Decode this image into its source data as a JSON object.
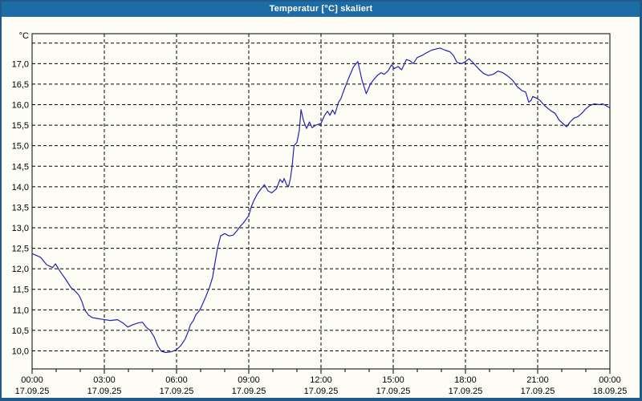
{
  "window": {
    "title": "Temperatur [°C] skaliert"
  },
  "chart_data": {
    "type": "line",
    "title": "Temperatur [°C] skaliert",
    "unit_label": "°C",
    "xlabel": "",
    "ylabel": "Temperatur [°C]",
    "xlim_hours": [
      0,
      24
    ],
    "ylim": [
      9.56,
      17.73
    ],
    "grid": "dashed",
    "legend": "none",
    "colors": {
      "titlebar": "#1d6ca5",
      "window_border": "#1e5a8c",
      "background": "#fdfdf6",
      "line": "#2424b2",
      "grid": "#000000"
    },
    "y_ticks": [
      {
        "value": 17.5,
        "label": ""
      },
      {
        "value": 17.0,
        "label": "17,0"
      },
      {
        "value": 16.5,
        "label": "16,5"
      },
      {
        "value": 16.0,
        "label": "16,0"
      },
      {
        "value": 15.5,
        "label": "15,5"
      },
      {
        "value": 15.0,
        "label": "15,0"
      },
      {
        "value": 14.5,
        "label": "14,5"
      },
      {
        "value": 14.0,
        "label": "14,0"
      },
      {
        "value": 13.5,
        "label": "13,5"
      },
      {
        "value": 13.0,
        "label": "13,0"
      },
      {
        "value": 12.5,
        "label": "12,5"
      },
      {
        "value": 12.0,
        "label": "12,0"
      },
      {
        "value": 11.5,
        "label": "11,5"
      },
      {
        "value": 11.0,
        "label": "11,0"
      },
      {
        "value": 10.5,
        "label": "10,5"
      },
      {
        "value": 10.0,
        "label": "10,0"
      }
    ],
    "x_ticks": [
      {
        "hour": 0,
        "time": "00:00",
        "date": "17.09.25"
      },
      {
        "hour": 3,
        "time": "03:00",
        "date": "17.09.25"
      },
      {
        "hour": 6,
        "time": "06:00",
        "date": "17.09.25"
      },
      {
        "hour": 9,
        "time": "09:00",
        "date": "17.09.25"
      },
      {
        "hour": 12,
        "time": "12:00",
        "date": "17.09.25"
      },
      {
        "hour": 15,
        "time": "15:00",
        "date": "17.09.25"
      },
      {
        "hour": 18,
        "time": "18:00",
        "date": "17.09.25"
      },
      {
        "hour": 21,
        "time": "21:00",
        "date": "17.09.25"
      },
      {
        "hour": 24,
        "time": "00:00",
        "date": "18.09.25"
      }
    ],
    "minor_x_tick_every_hours": 1,
    "series": [
      {
        "name": "Temperatur",
        "color": "#2424b2",
        "points_hour_degC": [
          [
            0,
            12.37
          ],
          [
            0.35,
            12.28
          ],
          [
            0.6,
            12.1
          ],
          [
            0.85,
            12.03
          ],
          [
            0.97,
            12.12
          ],
          [
            1.17,
            11.93
          ],
          [
            1.4,
            11.74
          ],
          [
            1.62,
            11.54
          ],
          [
            1.8,
            11.45
          ],
          [
            1.95,
            11.35
          ],
          [
            2.07,
            11.2
          ],
          [
            2.18,
            11.0
          ],
          [
            2.35,
            10.87
          ],
          [
            2.5,
            10.81
          ],
          [
            2.8,
            10.78
          ],
          [
            3.25,
            10.74
          ],
          [
            3.55,
            10.76
          ],
          [
            3.8,
            10.67
          ],
          [
            3.97,
            10.58
          ],
          [
            4.15,
            10.63
          ],
          [
            4.4,
            10.68
          ],
          [
            4.58,
            10.7
          ],
          [
            4.75,
            10.57
          ],
          [
            4.9,
            10.5
          ],
          [
            5.07,
            10.34
          ],
          [
            5.22,
            10.12
          ],
          [
            5.37,
            9.99
          ],
          [
            5.55,
            9.96
          ],
          [
            5.8,
            9.98
          ],
          [
            6.0,
            10.03
          ],
          [
            6.18,
            10.13
          ],
          [
            6.35,
            10.28
          ],
          [
            6.47,
            10.45
          ],
          [
            6.58,
            10.64
          ],
          [
            6.7,
            10.74
          ],
          [
            6.8,
            10.88
          ],
          [
            6.92,
            10.96
          ],
          [
            7.02,
            11.06
          ],
          [
            7.2,
            11.3
          ],
          [
            7.37,
            11.55
          ],
          [
            7.5,
            11.8
          ],
          [
            7.57,
            12.06
          ],
          [
            7.7,
            12.5
          ],
          [
            7.83,
            12.8
          ],
          [
            8.0,
            12.86
          ],
          [
            8.18,
            12.8
          ],
          [
            8.35,
            12.82
          ],
          [
            8.5,
            12.92
          ],
          [
            8.62,
            13.02
          ],
          [
            8.78,
            13.12
          ],
          [
            9.0,
            13.3
          ],
          [
            9.1,
            13.5
          ],
          [
            9.2,
            13.65
          ],
          [
            9.35,
            13.82
          ],
          [
            9.5,
            13.94
          ],
          [
            9.65,
            14.05
          ],
          [
            9.8,
            13.9
          ],
          [
            9.95,
            13.85
          ],
          [
            10.15,
            13.95
          ],
          [
            10.3,
            14.18
          ],
          [
            10.4,
            14.1
          ],
          [
            10.47,
            14.2
          ],
          [
            10.57,
            14.05
          ],
          [
            10.65,
            14.0
          ],
          [
            10.73,
            14.2
          ],
          [
            10.8,
            14.5
          ],
          [
            10.88,
            15.0
          ],
          [
            11.0,
            15.08
          ],
          [
            11.1,
            15.38
          ],
          [
            11.17,
            15.88
          ],
          [
            11.28,
            15.6
          ],
          [
            11.4,
            15.42
          ],
          [
            11.52,
            15.58
          ],
          [
            11.63,
            15.44
          ],
          [
            11.78,
            15.5
          ],
          [
            12.0,
            15.54
          ],
          [
            12.15,
            15.74
          ],
          [
            12.27,
            15.84
          ],
          [
            12.37,
            15.74
          ],
          [
            12.48,
            15.87
          ],
          [
            12.58,
            15.77
          ],
          [
            12.72,
            16.05
          ],
          [
            12.83,
            16.15
          ],
          [
            12.95,
            16.35
          ],
          [
            13.15,
            16.65
          ],
          [
            13.35,
            16.92
          ],
          [
            13.53,
            17.05
          ],
          [
            13.7,
            16.6
          ],
          [
            13.88,
            16.27
          ],
          [
            14.05,
            16.5
          ],
          [
            14.2,
            16.62
          ],
          [
            14.35,
            16.72
          ],
          [
            14.5,
            16.78
          ],
          [
            14.62,
            16.74
          ],
          [
            14.78,
            16.82
          ],
          [
            14.93,
            16.97
          ],
          [
            15.05,
            16.88
          ],
          [
            15.2,
            16.93
          ],
          [
            15.35,
            16.85
          ],
          [
            15.55,
            17.1
          ],
          [
            15.7,
            17.07
          ],
          [
            15.83,
            17.0
          ],
          [
            16.0,
            17.15
          ],
          [
            16.2,
            17.2
          ],
          [
            16.4,
            17.27
          ],
          [
            16.6,
            17.33
          ],
          [
            16.8,
            17.36
          ],
          [
            16.95,
            17.38
          ],
          [
            17.15,
            17.33
          ],
          [
            17.35,
            17.29
          ],
          [
            17.5,
            17.2
          ],
          [
            17.65,
            17.03
          ],
          [
            17.85,
            17.0
          ],
          [
            18.0,
            17.05
          ],
          [
            18.15,
            17.12
          ],
          [
            18.35,
            17.0
          ],
          [
            18.55,
            16.87
          ],
          [
            18.75,
            16.76
          ],
          [
            18.95,
            16.71
          ],
          [
            19.15,
            16.74
          ],
          [
            19.35,
            16.82
          ],
          [
            19.55,
            16.78
          ],
          [
            19.75,
            16.7
          ],
          [
            19.95,
            16.6
          ],
          [
            20.15,
            16.44
          ],
          [
            20.35,
            16.34
          ],
          [
            20.5,
            16.31
          ],
          [
            20.63,
            16.06
          ],
          [
            20.72,
            16.1
          ],
          [
            20.8,
            16.2
          ],
          [
            20.95,
            16.16
          ],
          [
            21.1,
            16.1
          ],
          [
            21.3,
            15.97
          ],
          [
            21.55,
            15.85
          ],
          [
            21.72,
            15.79
          ],
          [
            21.9,
            15.62
          ],
          [
            22.05,
            15.54
          ],
          [
            22.2,
            15.46
          ],
          [
            22.35,
            15.58
          ],
          [
            22.5,
            15.67
          ],
          [
            22.68,
            15.71
          ],
          [
            22.85,
            15.8
          ],
          [
            23.0,
            15.9
          ],
          [
            23.17,
            15.98
          ],
          [
            23.35,
            16.02
          ],
          [
            23.55,
            16.0
          ],
          [
            23.7,
            16.02
          ],
          [
            23.85,
            15.97
          ],
          [
            24.0,
            15.92
          ]
        ]
      }
    ]
  }
}
